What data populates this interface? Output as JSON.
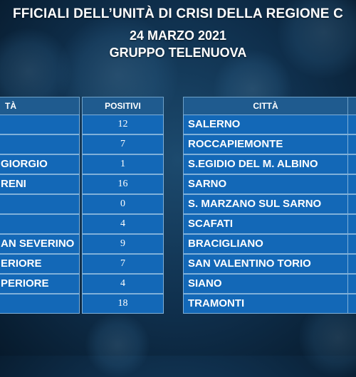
{
  "header": {
    "line1": "FFICIALI DELL’UNITÀ DI CRISI DELLA REGIONE C",
    "line2": "24 MARZO 2021",
    "line3": "GRUPPO TELENUOVA"
  },
  "left_table": {
    "col_city": "TÀ",
    "col_positive": "POSITIVI",
    "rows": [
      {
        "name": "",
        "value": "12"
      },
      {
        "name": "",
        "value": "7"
      },
      {
        "name": "GIORGIO",
        "value": "1"
      },
      {
        "name": "RENI",
        "value": "16"
      },
      {
        "name": "",
        "value": "0"
      },
      {
        "name": "",
        "value": "4"
      },
      {
        "name": "AN SEVERINO",
        "value": "9"
      },
      {
        "name": "ERIORE",
        "value": "7"
      },
      {
        "name": "PERIORE",
        "value": "4"
      },
      {
        "name": "",
        "value": "18"
      }
    ]
  },
  "right_table": {
    "col_city": "CITTÀ",
    "rows": [
      {
        "name": "SALERNO"
      },
      {
        "name": "ROCCAPIEMONTE"
      },
      {
        "name": "S.EGIDIO DEL M. ALBINO"
      },
      {
        "name": "SARNO"
      },
      {
        "name": "S. MARZANO SUL SARNO"
      },
      {
        "name": "SCAFATI"
      },
      {
        "name": "BRACIGLIANO"
      },
      {
        "name": "SAN VALENTINO TORIO"
      },
      {
        "name": "SIANO"
      },
      {
        "name": "TRAMONTI"
      }
    ]
  }
}
